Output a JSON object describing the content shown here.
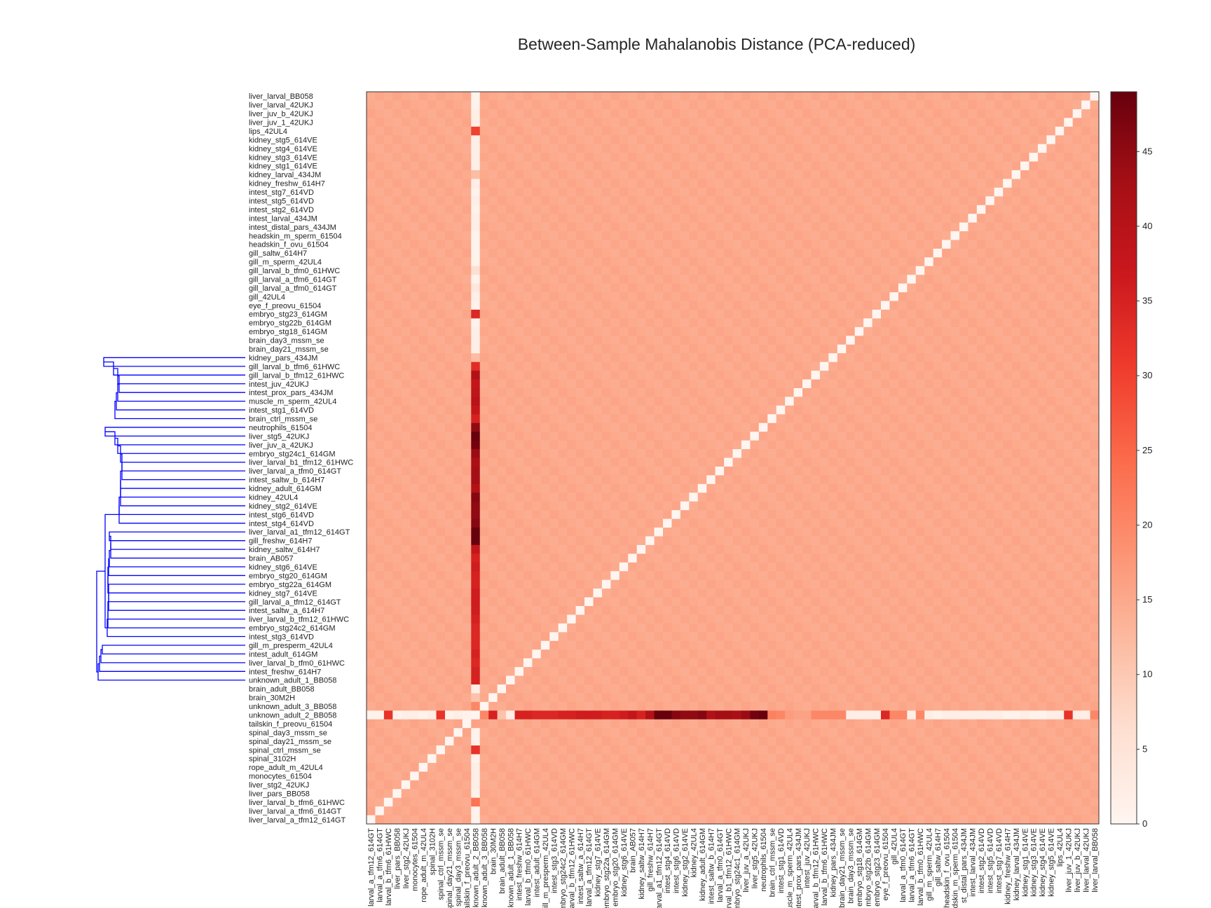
{
  "chart_data": {
    "type": "heatmap",
    "title": "Between-Sample Mahalanobis Distance (PCA-reduced)",
    "colormap": "Reds",
    "color_range": [
      0,
      49
    ],
    "colorbar_ticks": [
      0,
      5,
      10,
      15,
      20,
      25,
      30,
      35,
      40,
      45
    ],
    "dendrogram_color": "#0000ff",
    "baseline_distance": 15,
    "rows_top_to_bottom": [
      "liver_larval_BB058",
      "liver_larval_42UKJ",
      "liver_juv_b_42UKJ",
      "liver_juv_1_42UKJ",
      "lips_42UL4",
      "kidney_stg5_614VE",
      "kidney_stg4_614VE",
      "kidney_stg3_614VE",
      "kidney_stg1_614VE",
      "kidney_larval_434JM",
      "kidney_freshw_614H7",
      "intest_stg7_614VD",
      "intest_stg5_614VD",
      "intest_stg2_614VD",
      "intest_larval_434JM",
      "intest_distal_pars_434JM",
      "headskin_m_sperm_61504",
      "headskin_f_ovu_61504",
      "gill_saltw_614H7",
      "gill_m_sperm_42UL4",
      "gill_larval_b_tfm0_61HWC",
      "gill_larval_a_tfm6_614GT",
      "gill_larval_a_tfm0_614GT",
      "gill_42UL4",
      "eye_f_preovu_61504",
      "embryo_stg23_614GM",
      "embryo_stg22b_614GM",
      "embryo_stg18_614GM",
      "brain_day3_mssm_se",
      "brain_day21_mssm_se",
      "kidney_pars_434JM",
      "gill_larval_b_tfm6_61HWC",
      "gill_larval_b_tfm12_61HWC",
      "intest_juv_42UKJ",
      "intest_prox_pars_434JM",
      "muscle_m_sperm_42UL4",
      "intest_stg1_614VD",
      "brain_ctrl_mssm_se",
      "neutrophils_61504",
      "liver_stg5_42UKJ",
      "liver_juv_a_42UKJ",
      "embryo_stg24c1_614GM",
      "liver_larval_b1_tfm12_61HWC",
      "liver_larval_a_tfm0_614GT",
      "intest_saltw_b_614H7",
      "kidney_adult_614GM",
      "kidney_42UL4",
      "kidney_stg2_614VE",
      "intest_stg6_614VD",
      "intest_stg4_614VD",
      "liver_larval_a1_tfm12_614GT",
      "gill_freshw_614H7",
      "kidney_saltw_614H7",
      "brain_AB057",
      "kidney_stg6_614VE",
      "embryo_stg20_614GM",
      "embryo_stg22a_614GM",
      "kidney_stg7_614VE",
      "gill_larval_a_tfm12_614GT",
      "intest_saltw_a_614H7",
      "liver_larval_b_tfm12_61HWC",
      "embryo_stg24c2_614GM",
      "intest_stg3_614VD",
      "gill_m_presperm_42UL4",
      "intest_adult_614GM",
      "liver_larval_b_tfm0_61HWC",
      "intest_freshw_614H7",
      "unknown_adult_1_BB058",
      "brain_adult_BB058",
      "brain_30M2H",
      "unknown_adult_3_BB058",
      "unknown_adult_2_BB058",
      "tailskin_f_preovu_61504",
      "spinal_day3_mssm_se",
      "spinal_day21_mssm_se",
      "spinal_ctrl_mssm_se",
      "spinal_3102H",
      "rope_adult_m_42UL4",
      "monocytes_61504",
      "liver_stg2_42UKJ",
      "liver_pars_BB058",
      "liver_larval_b_tfm6_61HWC",
      "liver_larval_a_tfm6_614GT",
      "liver_larval_a_tfm12_614GT"
    ],
    "cols_left_to_right": [
      "larval_a_tfm12_614GT",
      "larval_a_tfm6_614GT",
      "larval_b_tfm6_61HWC",
      "liver_pars_BB058",
      "liver_stg2_42UKJ",
      "monocytes_61504",
      "rope_adult_m_42UL4",
      "spinal_3102H",
      "spinal_ctrl_mssm_se",
      "spinal_day21_mssm_se",
      "spinal_day3_mssm_se",
      "ailskin_f_preovu_61504",
      "known_adult_2_BB058",
      "known_adult_3_BB058",
      "brain_30M2H",
      "brain_adult_BB058",
      "known_adult_1_BB058",
      "intest_freshw_614H7",
      "larval_b_tfm0_61HWC",
      "intest_adult_614GM",
      "ill_m_presperm_42UL4",
      "intest_stg3_614VD",
      "mbryo_stg24c2_614GM",
      "larval_b_tfm12_61HWC",
      "intest_saltw_a_614H7",
      "larval_a_tfm12_614GT",
      "kidney_stg7_614VE",
      "embryo_stg22a_614GM",
      "embryo_stg20_614GM",
      "kidney_stg6_614VE",
      "brain_AB057",
      "kidney_saltw_614H7",
      "gill_freshw_614H7",
      "arval_a1_tfm12_614GT",
      "intest_stg4_614VD",
      "intest_stg6_614VD",
      "kidney_stg2_614VE",
      "kidney_42UL4",
      "kidney_adult_614GM",
      "intest_saltw_b_614H7",
      "larval_a_tfm0_614GT",
      "arval_b1_tfm12_61HWC",
      "mbryo_stg24c1_614GM",
      "liver_juv_a_42UKJ",
      "liver_stg5_42UKJ",
      "neutrophils_61504",
      "brain_ctrl_mssm_se",
      "intest_stg1_614VD",
      "uscle_m_sperm_42UL4",
      "ntest_prox_pars_434JM",
      "intest_juv_42UKJ",
      "larval_b_tfm12_61HWC",
      "larval_b_tfm6_61HWC",
      "kidney_pars_434JM",
      "brain_day21_mssm_se",
      "brain_day3_mssm_se",
      "embryo_stg18_614GM",
      "mbryo_stg22b_614GM",
      "embryo_stg23_614GM",
      "eye_f_preovu_61504",
      "gill_42UL4",
      "larval_a_tfm0_614GT",
      "larval_a_tfm6_614GT",
      "larval_b_tfm0_61HWC",
      "gill_m_sperm_42UL4",
      "gill_saltw_614H7",
      "headskin_f_ovu_61504",
      "adskin_m_sperm_61504",
      "st_distal_pars_434JM",
      "intest_larval_434JM",
      "intest_stg2_614VD",
      "intest_stg5_614VD",
      "intest_stg7_614VD",
      "kidney_freshw_614H7",
      "kidney_larval_434JM",
      "kidney_stg1_614VE",
      "kidney_stg3_614VE",
      "kidney_stg4_614VE",
      "kidney_stg5_614VE",
      "lips_42UL4",
      "liver_juv_1_42UKJ",
      "liver_juv_b_42UKJ",
      "liver_larval_42UKJ",
      "liver_larval_BB058"
    ],
    "outlier_col_distances_top_to_bottom": [
      1,
      1,
      2,
      2,
      30,
      2,
      2,
      2,
      2,
      12,
      2,
      1,
      2,
      1,
      2,
      2,
      1,
      1,
      1,
      1,
      6,
      1,
      4,
      2,
      1,
      34,
      1,
      2,
      2,
      2,
      12,
      33,
      41,
      38,
      39,
      40,
      38,
      35,
      45,
      49,
      48,
      44,
      42,
      43,
      43,
      41,
      46,
      45,
      45,
      46,
      49,
      49,
      38,
      35,
      36,
      35,
      35,
      36,
      36,
      36,
      35,
      34,
      34,
      34,
      35,
      34,
      35,
      35,
      2,
      11,
      20,
      0,
      16,
      1,
      1,
      32,
      1,
      2,
      2,
      2,
      1,
      23,
      1,
      1
    ],
    "outlier_row_distances_left_to_right": [
      1,
      1,
      32,
      1,
      2,
      2,
      1,
      2,
      32,
      1,
      2,
      1,
      0,
      20,
      35,
      11,
      2,
      35,
      35,
      34,
      34,
      34,
      35,
      35,
      36,
      36,
      36,
      35,
      35,
      36,
      38,
      35,
      41,
      49,
      49,
      46,
      45,
      45,
      46,
      41,
      43,
      43,
      42,
      44,
      48,
      49,
      21,
      20,
      17,
      16,
      16,
      20,
      20,
      20,
      20,
      2,
      2,
      2,
      2,
      34,
      20,
      20,
      2,
      20,
      2,
      1,
      2,
      2,
      2,
      2,
      2,
      2,
      2,
      1,
      1,
      2,
      1,
      1,
      2,
      2,
      32,
      2,
      2,
      20
    ]
  }
}
